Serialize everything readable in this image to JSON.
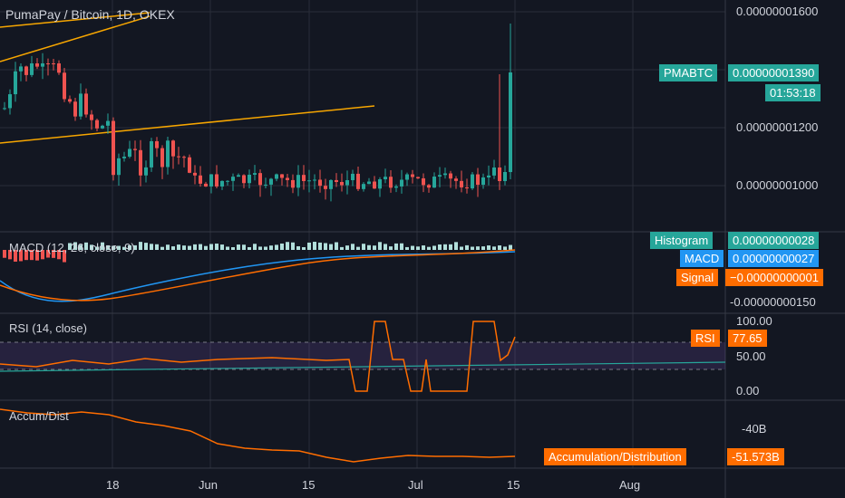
{
  "header": {
    "title": "PumaPay / Bitcoin, 1D, OKEX"
  },
  "colors": {
    "bg": "#131722",
    "up": "#26a69a",
    "down": "#ef5350",
    "grid": "#2a2e39",
    "macd": "#2196f3",
    "signal": "#ff6d00",
    "rsi": "#ff6d00",
    "rsi_ma": "#26a69a",
    "band": "#7e57c2",
    "accum": "#ff6d00",
    "trend": "#f7a600"
  },
  "price_axis": {
    "labels": [
      "0.00000001600",
      "0.00000001200",
      "0.00000001000"
    ]
  },
  "price_tag": {
    "symbol": "PMABTC",
    "value": "0.00000001390",
    "countdown": "01:53:18"
  },
  "macd": {
    "title": "MACD (12, 26, close, 9)",
    "axis_label": "-0.00000000150",
    "histogram_label": "Histogram",
    "histogram_value": "0.00000000028",
    "macd_label": "MACD",
    "macd_value": "0.00000000027",
    "signal_label": "Signal",
    "signal_value": "−0.00000000001"
  },
  "rsi": {
    "title": "RSI (14, close)",
    "axis_labels": [
      "100.00",
      "50.00",
      "0.00"
    ],
    "tag_label": "RSI",
    "tag_value": "77.65"
  },
  "accum": {
    "title": "Accum/Dist",
    "axis_label": "-40B",
    "tag_label": "Accumulation/Distribution",
    "tag_value": "-51.573B"
  },
  "time_axis": {
    "labels": [
      "18",
      "Jun",
      "15",
      "Jul",
      "15",
      "Aug"
    ]
  },
  "chart_data": {
    "type": "candlestick",
    "symbol": "PMABTC",
    "interval": "1D",
    "exchange": "OKEX",
    "y_axis_ticks": [
      1.6e-08,
      1.2e-08,
      1e-08
    ],
    "last_close": 1.39e-08,
    "indicators": {
      "macd": {
        "histogram": 2.8e-10,
        "macd": 2.7e-10,
        "signal": -1e-11
      },
      "rsi": {
        "value": 77.65,
        "upper_band": 70,
        "lower_band": 30
      },
      "accumulation_distribution": {
        "value_billions": -51.573
      }
    }
  }
}
